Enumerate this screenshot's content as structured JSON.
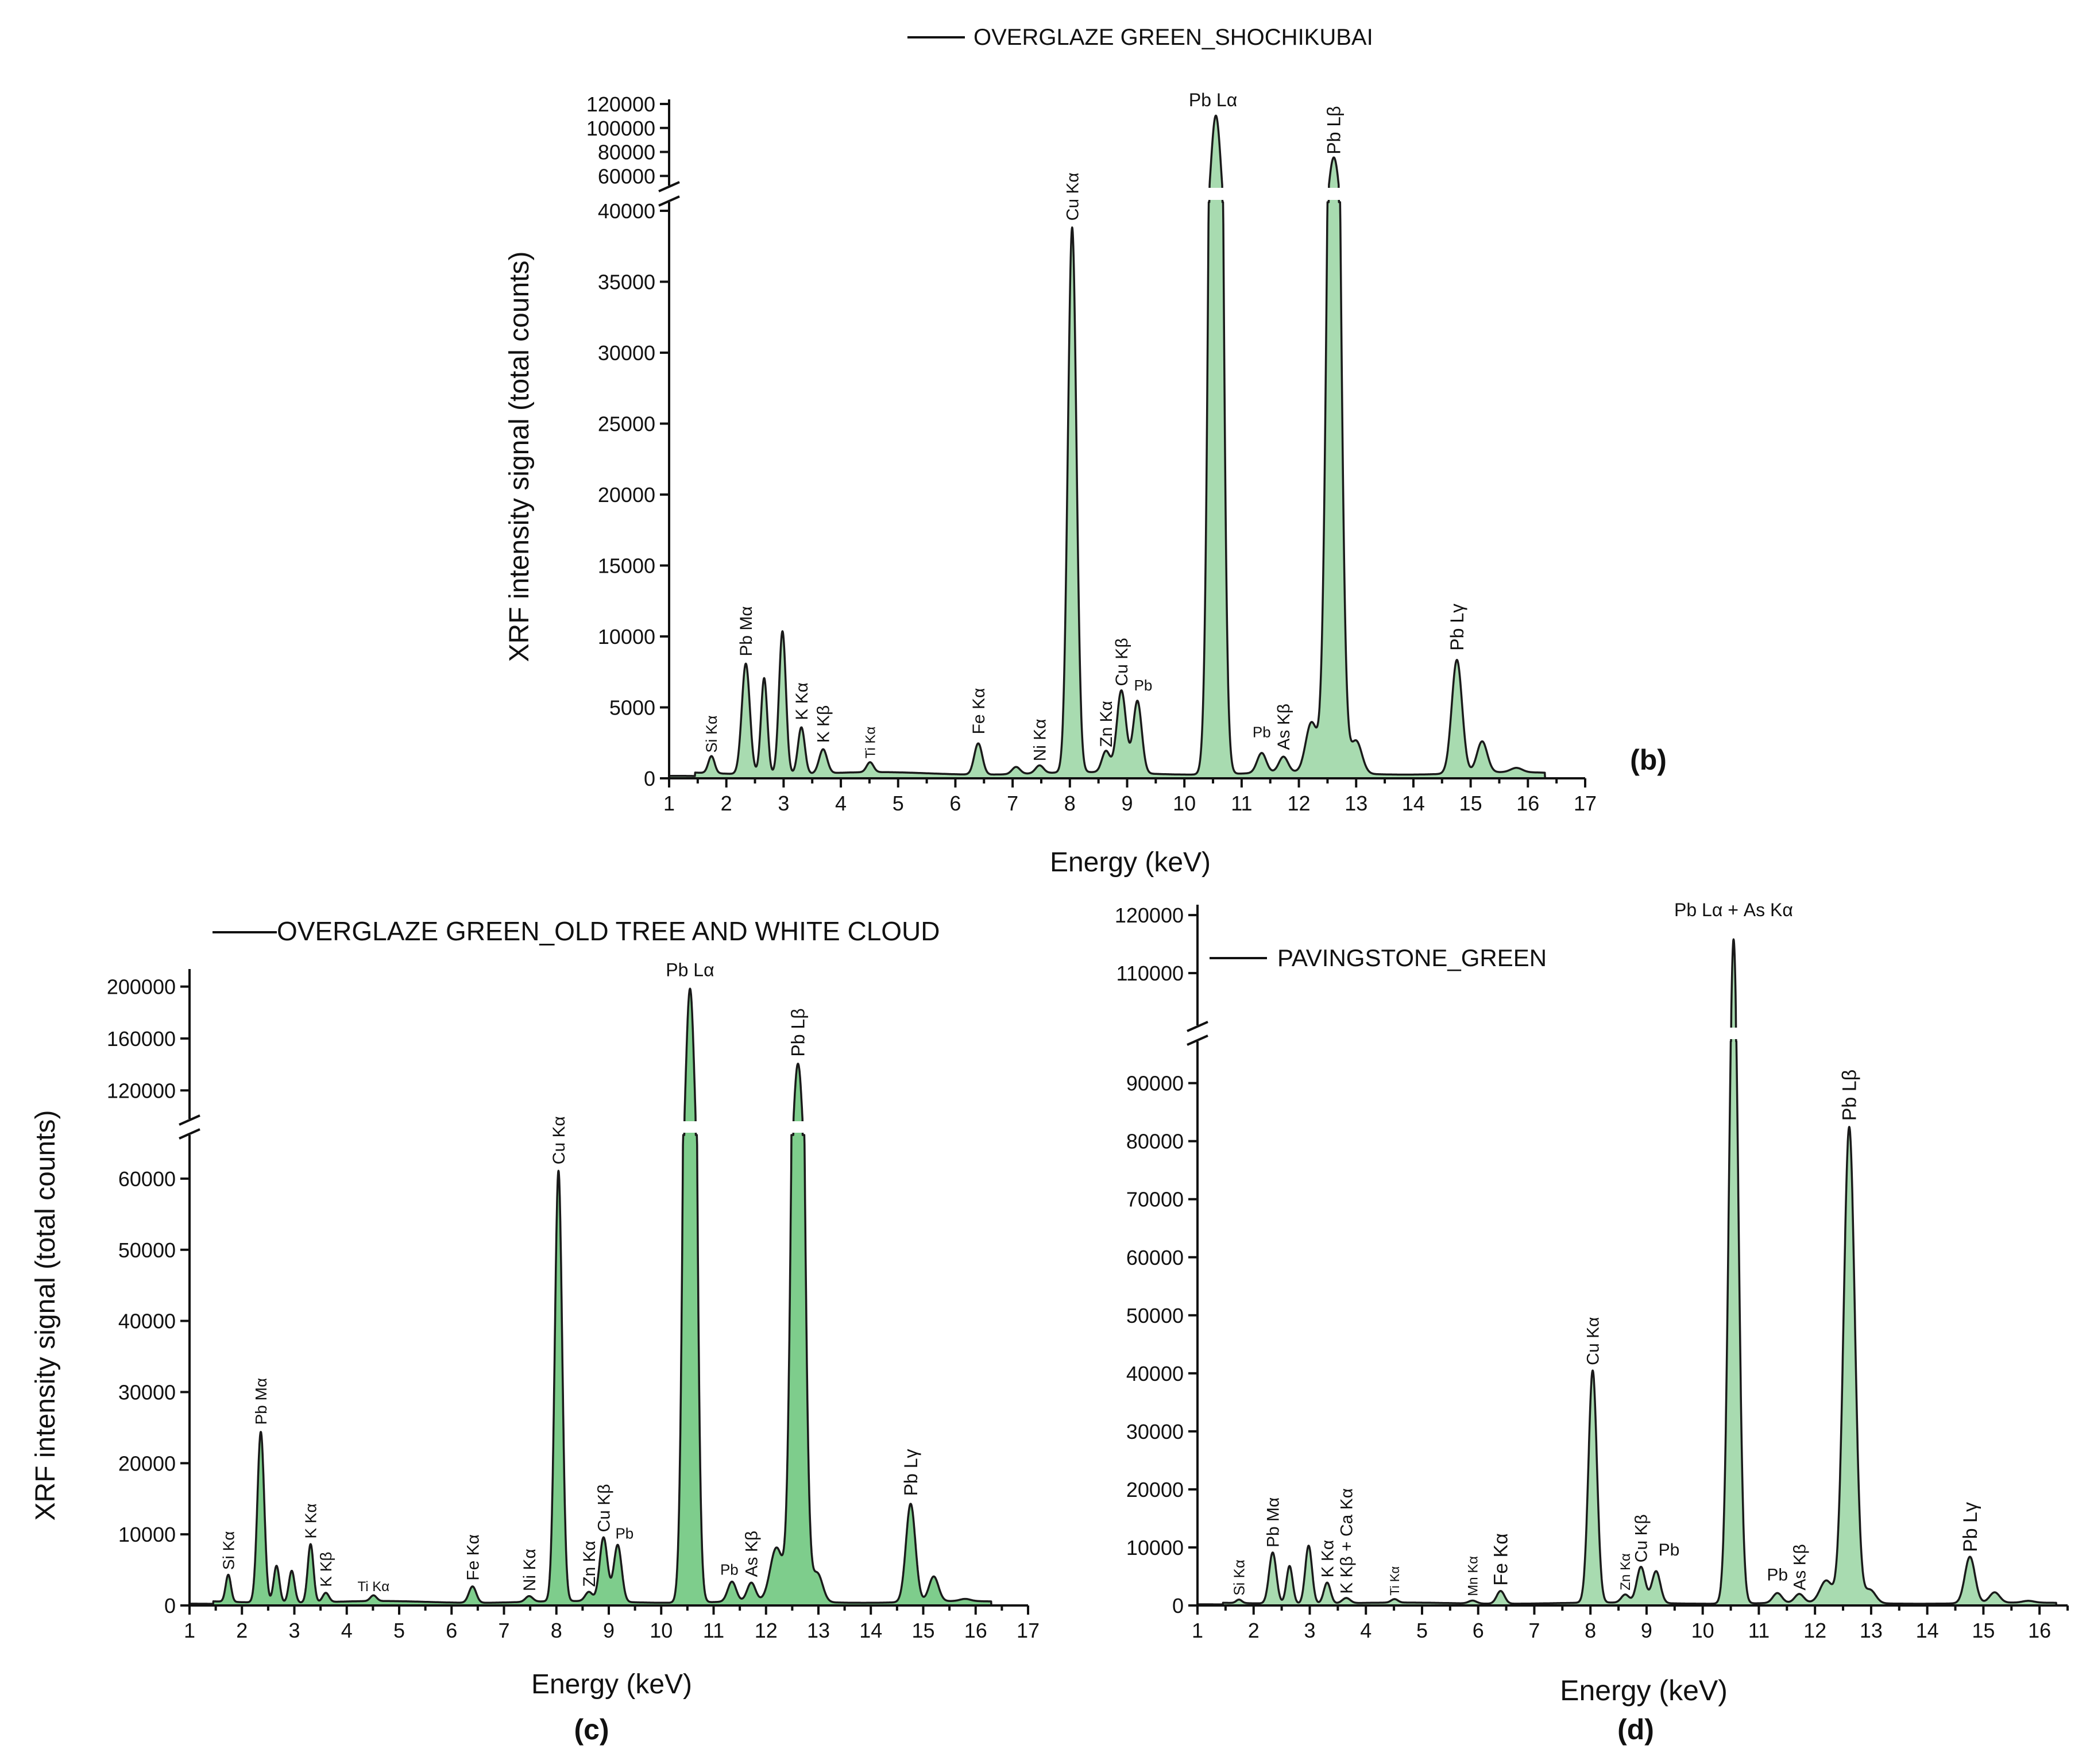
{
  "chart_data": [
    {
      "type": "area",
      "panel_label": "(b)",
      "legend": "OVERGLAZE GREEN_SHOCHIKUBAI",
      "xlabel": "Energy (keV)",
      "ylabel": "XRF intensity signal (total counts)",
      "x_ticks": [
        "1",
        "2",
        "3",
        "4",
        "5",
        "6",
        "7",
        "8",
        "9",
        "10",
        "11",
        "12",
        "13",
        "14",
        "15",
        "16",
        "17"
      ],
      "xlim": [
        1,
        17
      ],
      "y_ticks_lower": [
        "0",
        "5000",
        "10000",
        "15000",
        "20000",
        "25000",
        "30000",
        "35000",
        "40000"
      ],
      "y_ticks_upper": [
        "60000",
        "80000",
        "100000",
        "120000"
      ],
      "ylim_lower": [
        0,
        40000
      ],
      "ylim_upper": [
        52000,
        120000
      ],
      "baseline": 350,
      "fill_color": "#a8dbb0",
      "peaks": [
        {
          "x": 1.74,
          "y": 1200,
          "w": 0.055
        },
        {
          "x": 2.34,
          "y": 7800,
          "w": 0.07
        },
        {
          "x": 2.66,
          "y": 6800,
          "w": 0.055
        },
        {
          "x": 2.98,
          "y": 10100,
          "w": 0.06
        },
        {
          "x": 3.31,
          "y": 3300,
          "w": 0.06
        },
        {
          "x": 3.69,
          "y": 1700,
          "w": 0.07
        },
        {
          "x": 4.51,
          "y": 700,
          "w": 0.06
        },
        {
          "x": 6.4,
          "y": 2200,
          "w": 0.07
        },
        {
          "x": 7.06,
          "y": 500,
          "w": 0.07
        },
        {
          "x": 7.47,
          "y": 550,
          "w": 0.07
        },
        {
          "x": 8.04,
          "y": 38400,
          "w": 0.075
        },
        {
          "x": 8.63,
          "y": 1500,
          "w": 0.07
        },
        {
          "x": 8.9,
          "y": 5800,
          "w": 0.08
        },
        {
          "x": 9.18,
          "y": 5100,
          "w": 0.075
        },
        {
          "x": 10.55,
          "y": 110000,
          "w": 0.09
        },
        {
          "x": 11.35,
          "y": 1400,
          "w": 0.08
        },
        {
          "x": 11.73,
          "y": 1100,
          "w": 0.08
        },
        {
          "x": 12.22,
          "y": 3500,
          "w": 0.1
        },
        {
          "x": 12.61,
          "y": 75000,
          "w": 0.1
        },
        {
          "x": 13.0,
          "y": 2300,
          "w": 0.1
        },
        {
          "x": 14.76,
          "y": 8000,
          "w": 0.09
        },
        {
          "x": 15.2,
          "y": 2200,
          "w": 0.09
        },
        {
          "x": 15.8,
          "y": 300,
          "w": 0.1
        }
      ],
      "annotations": [
        {
          "text": "Si Kα",
          "x": 1.74,
          "y": 1800,
          "size": 27,
          "rot": -90
        },
        {
          "text": "Pb Mα",
          "x": 2.34,
          "y": 8600,
          "size": 30,
          "rot": -90
        },
        {
          "text": "K Kα",
          "x": 3.31,
          "y": 4100,
          "size": 30,
          "rot": -90
        },
        {
          "text": "K Kβ",
          "x": 3.69,
          "y": 2500,
          "size": 30,
          "rot": -90
        },
        {
          "text": "Ti Kα",
          "x": 4.51,
          "y": 1400,
          "size": 24,
          "rot": -90
        },
        {
          "text": "Fe Kα",
          "x": 6.4,
          "y": 3100,
          "size": 30,
          "rot": -90
        },
        {
          "text": "Ni Kα",
          "x": 7.47,
          "y": 1200,
          "size": 30,
          "rot": -90
        },
        {
          "text": "Cu Kα",
          "x": 8.04,
          "y": 39300,
          "size": 30,
          "rot": -90
        },
        {
          "text": "Zn Kα",
          "x": 8.63,
          "y": 2200,
          "size": 30,
          "rot": -90
        },
        {
          "text": "Cu Kβ",
          "x": 8.9,
          "y": 6500,
          "size": 30,
          "rot": -90
        },
        {
          "text": "Pb",
          "x": 9.28,
          "y": 6200,
          "size": 26,
          "rot": 0
        },
        {
          "text": "Pb Lα",
          "x": 10.5,
          "y": 118000,
          "size": 32,
          "rot": 0
        },
        {
          "text": "Pb",
          "x": 11.35,
          "y": 2900,
          "size": 26,
          "rot": 0
        },
        {
          "text": "As Kβ",
          "x": 11.73,
          "y": 2000,
          "size": 30,
          "rot": -90
        },
        {
          "text": "Pb Lβ",
          "x": 12.61,
          "y": 78000,
          "size": 32,
          "rot": -90
        },
        {
          "text": "Pb Lγ",
          "x": 14.76,
          "y": 9000,
          "size": 32,
          "rot": -90
        }
      ]
    },
    {
      "type": "area",
      "panel_label": "(c)",
      "legend": "OVERGLAZE GREEN_OLD TREE AND WHITE CLOUD",
      "xlabel": "Energy (keV)",
      "ylabel": "XRF intensity signal (total counts)",
      "x_ticks": [
        "1",
        "2",
        "3",
        "4",
        "5",
        "6",
        "7",
        "8",
        "9",
        "10",
        "11",
        "12",
        "13",
        "14",
        "15",
        "16",
        "17"
      ],
      "xlim": [
        1,
        17
      ],
      "y_ticks_lower": [
        "0",
        "10000",
        "20000",
        "30000",
        "40000",
        "50000",
        "60000"
      ],
      "y_ticks_upper": [
        "120000",
        "160000",
        "200000"
      ],
      "ylim_lower": [
        0,
        65000
      ],
      "ylim_upper": [
        98000,
        210000
      ],
      "baseline": 500,
      "fill_color": "#7ecd8c",
      "peaks": [
        {
          "x": 1.74,
          "y": 3800,
          "w": 0.05
        },
        {
          "x": 2.36,
          "y": 24000,
          "w": 0.065
        },
        {
          "x": 2.66,
          "y": 5200,
          "w": 0.055
        },
        {
          "x": 2.95,
          "y": 4500,
          "w": 0.055
        },
        {
          "x": 3.31,
          "y": 8200,
          "w": 0.055
        },
        {
          "x": 3.6,
          "y": 1300,
          "w": 0.06
        },
        {
          "x": 4.51,
          "y": 800,
          "w": 0.06
        },
        {
          "x": 6.4,
          "y": 2300,
          "w": 0.07
        },
        {
          "x": 7.48,
          "y": 800,
          "w": 0.07
        },
        {
          "x": 8.04,
          "y": 60500,
          "w": 0.07
        },
        {
          "x": 8.62,
          "y": 1300,
          "w": 0.07
        },
        {
          "x": 8.9,
          "y": 9000,
          "w": 0.075
        },
        {
          "x": 9.17,
          "y": 8000,
          "w": 0.075
        },
        {
          "x": 10.55,
          "y": 198000,
          "w": 0.09
        },
        {
          "x": 11.35,
          "y": 2800,
          "w": 0.08
        },
        {
          "x": 11.72,
          "y": 2600,
          "w": 0.08
        },
        {
          "x": 12.2,
          "y": 7500,
          "w": 0.12
        },
        {
          "x": 12.61,
          "y": 140000,
          "w": 0.1
        },
        {
          "x": 12.98,
          "y": 4000,
          "w": 0.1
        },
        {
          "x": 14.76,
          "y": 13800,
          "w": 0.09
        },
        {
          "x": 15.2,
          "y": 3500,
          "w": 0.09
        },
        {
          "x": 15.8,
          "y": 300,
          "w": 0.1
        }
      ],
      "annotations": [
        {
          "text": "Si Kα",
          "x": 1.74,
          "y": 5000,
          "size": 28,
          "rot": -90
        },
        {
          "text": "Pb Mα",
          "x": 2.36,
          "y": 25400,
          "size": 28,
          "rot": -90
        },
        {
          "text": "K Kα",
          "x": 3.31,
          "y": 9400,
          "size": 28,
          "rot": -90
        },
        {
          "text": "K Kβ",
          "x": 3.6,
          "y": 2600,
          "size": 28,
          "rot": -90
        },
        {
          "text": "Ti Kα",
          "x": 4.51,
          "y": 2000,
          "size": 24,
          "rot": 0
        },
        {
          "text": "Fe Kα",
          "x": 6.4,
          "y": 3500,
          "size": 30,
          "rot": -90
        },
        {
          "text": "Ni Kα",
          "x": 7.48,
          "y": 2000,
          "size": 30,
          "rot": -90
        },
        {
          "text": "Cu Kα",
          "x": 8.04,
          "y": 62000,
          "size": 30,
          "rot": -90
        },
        {
          "text": "Zn Kα",
          "x": 8.62,
          "y": 2600,
          "size": 30,
          "rot": -90
        },
        {
          "text": "Cu Kβ",
          "x": 8.9,
          "y": 10300,
          "size": 30,
          "rot": -90
        },
        {
          "text": "Pb",
          "x": 9.3,
          "y": 9400,
          "size": 26,
          "rot": 0
        },
        {
          "text": "Pb Lα",
          "x": 10.55,
          "y": 208000,
          "size": 32,
          "rot": 0
        },
        {
          "text": "Pb",
          "x": 11.3,
          "y": 4300,
          "size": 26,
          "rot": 0
        },
        {
          "text": "As Kβ",
          "x": 11.72,
          "y": 4000,
          "size": 30,
          "rot": -90
        },
        {
          "text": "Pb Lβ",
          "x": 12.61,
          "y": 146000,
          "size": 32,
          "rot": -90
        },
        {
          "text": "Pb Lγ",
          "x": 14.76,
          "y": 15400,
          "size": 32,
          "rot": -90
        }
      ]
    },
    {
      "type": "area",
      "panel_label": "(d)",
      "legend": "PAVINGSTONE_GREEN",
      "xlabel": "Energy (keV)",
      "ylabel": "",
      "x_ticks": [
        "1",
        "2",
        "3",
        "4",
        "5",
        "6",
        "7",
        "8",
        "9",
        "10",
        "11",
        "12",
        "13",
        "14",
        "15",
        "16"
      ],
      "xlim": [
        1,
        16.5
      ],
      "y_ticks_lower": [
        "0",
        "10000",
        "20000",
        "30000",
        "40000",
        "50000",
        "60000",
        "70000",
        "80000",
        "90000"
      ],
      "y_ticks_upper": [
        "110000",
        "120000"
      ],
      "ylim_lower": [
        0,
        96000
      ],
      "ylim_upper": [
        101000,
        121000
      ],
      "baseline": 400,
      "fill_color": "#a8dbb0",
      "peaks": [
        {
          "x": 1.74,
          "y": 600,
          "w": 0.05
        },
        {
          "x": 2.34,
          "y": 8800,
          "w": 0.065
        },
        {
          "x": 2.64,
          "y": 6500,
          "w": 0.055
        },
        {
          "x": 2.98,
          "y": 10000,
          "w": 0.06
        },
        {
          "x": 3.31,
          "y": 3600,
          "w": 0.06
        },
        {
          "x": 3.65,
          "y": 900,
          "w": 0.07
        },
        {
          "x": 4.51,
          "y": 600,
          "w": 0.06
        },
        {
          "x": 5.9,
          "y": 500,
          "w": 0.07
        },
        {
          "x": 6.4,
          "y": 2200,
          "w": 0.07
        },
        {
          "x": 8.04,
          "y": 40000,
          "w": 0.075
        },
        {
          "x": 8.62,
          "y": 1400,
          "w": 0.07
        },
        {
          "x": 8.9,
          "y": 6200,
          "w": 0.075
        },
        {
          "x": 9.17,
          "y": 5500,
          "w": 0.075
        },
        {
          "x": 10.55,
          "y": 115500,
          "w": 0.085
        },
        {
          "x": 11.33,
          "y": 1700,
          "w": 0.08
        },
        {
          "x": 11.72,
          "y": 1500,
          "w": 0.08
        },
        {
          "x": 12.2,
          "y": 3800,
          "w": 0.11
        },
        {
          "x": 12.61,
          "y": 82000,
          "w": 0.1
        },
        {
          "x": 12.98,
          "y": 2300,
          "w": 0.1
        },
        {
          "x": 14.76,
          "y": 8000,
          "w": 0.09
        },
        {
          "x": 15.2,
          "y": 1800,
          "w": 0.09
        },
        {
          "x": 15.8,
          "y": 300,
          "w": 0.1
        }
      ],
      "annotations": [
        {
          "text": "Si Kα",
          "x": 1.74,
          "y": 1700,
          "size": 26,
          "rot": -90
        },
        {
          "text": "Pb Mα",
          "x": 2.34,
          "y": 10000,
          "size": 30,
          "rot": -90
        },
        {
          "text": "K Kα",
          "x": 3.31,
          "y": 4800,
          "size": 30,
          "rot": -90
        },
        {
          "text": "K Kβ + Ca Kα",
          "x": 3.65,
          "y": 2000,
          "size": 30,
          "rot": -90
        },
        {
          "text": "Ti Kα",
          "x": 4.51,
          "y": 1700,
          "size": 22,
          "rot": -90
        },
        {
          "text": "Mn Kα",
          "x": 5.9,
          "y": 1600,
          "size": 24,
          "rot": -90
        },
        {
          "text": "Fe Kα",
          "x": 6.4,
          "y": 3400,
          "size": 34,
          "rot": -90
        },
        {
          "text": "Cu Kα",
          "x": 8.04,
          "y": 41400,
          "size": 30,
          "rot": -90
        },
        {
          "text": "Zn Kα",
          "x": 8.62,
          "y": 2600,
          "size": 24,
          "rot": -90
        },
        {
          "text": "Cu Kβ",
          "x": 8.9,
          "y": 7400,
          "size": 30,
          "rot": -90
        },
        {
          "text": "Pb",
          "x": 9.4,
          "y": 8600,
          "size": 30,
          "rot": 0
        },
        {
          "text": "Pb Lα + As Kα",
          "x": 10.55,
          "y": 119800,
          "size": 32,
          "rot": 0
        },
        {
          "text": "Pb",
          "x": 11.33,
          "y": 4300,
          "size": 30,
          "rot": 0
        },
        {
          "text": "As Kβ",
          "x": 11.72,
          "y": 2600,
          "size": 30,
          "rot": -90
        },
        {
          "text": "Pb Lβ",
          "x": 12.61,
          "y": 83500,
          "size": 34,
          "rot": -90
        },
        {
          "text": "Pb Lγ",
          "x": 14.76,
          "y": 9200,
          "size": 34,
          "rot": -90
        }
      ]
    }
  ]
}
